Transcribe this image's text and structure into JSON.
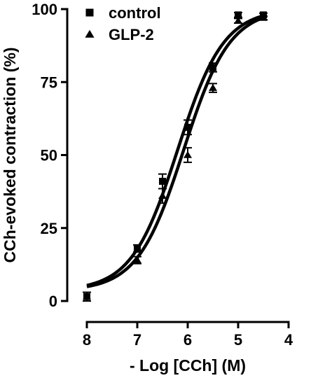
{
  "chart_data": {
    "type": "scatter",
    "xlabel": "- Log [CCh] (M)",
    "ylabel": "CCh-evoked contraction (%)",
    "xlim": [
      8,
      4
    ],
    "ylim": [
      0,
      100
    ],
    "x_ticks": [
      8,
      7,
      6,
      5,
      4
    ],
    "x_tick_labels": [
      "8",
      "7",
      "6",
      "5",
      "4"
    ],
    "y_ticks": [
      0,
      25,
      50,
      75,
      100
    ],
    "y_tick_labels": [
      "0",
      "25",
      "50",
      "75",
      "100"
    ],
    "x_reversed": true,
    "legend_position": "top-left",
    "grid": false,
    "series": [
      {
        "name": "control",
        "marker": "square",
        "x": [
          8,
          7,
          6.5,
          6,
          5.5,
          5,
          4.5
        ],
        "y": [
          1.5,
          18,
          41,
          59.5,
          80,
          98,
          98
        ],
        "err": [
          1.5,
          1.2,
          2.5,
          2.5,
          1.5,
          0.8,
          0.6
        ],
        "fit": {
          "bottom": 3.5,
          "top": 100,
          "logEC50": -6.2,
          "hill": 0.95
        }
      },
      {
        "name": "GLP-2",
        "marker": "triangle",
        "x": [
          8,
          7,
          6.5,
          6,
          5.5,
          5,
          4.5
        ],
        "y": [
          1.5,
          14,
          36,
          50,
          73,
          96,
          97
        ],
        "err": [
          1.5,
          1.2,
          2.5,
          2.5,
          1.5,
          0.8,
          0.6
        ],
        "fit": {
          "bottom": 3.5,
          "top": 100,
          "logEC50": -6.08,
          "hill": 0.95
        }
      }
    ]
  }
}
